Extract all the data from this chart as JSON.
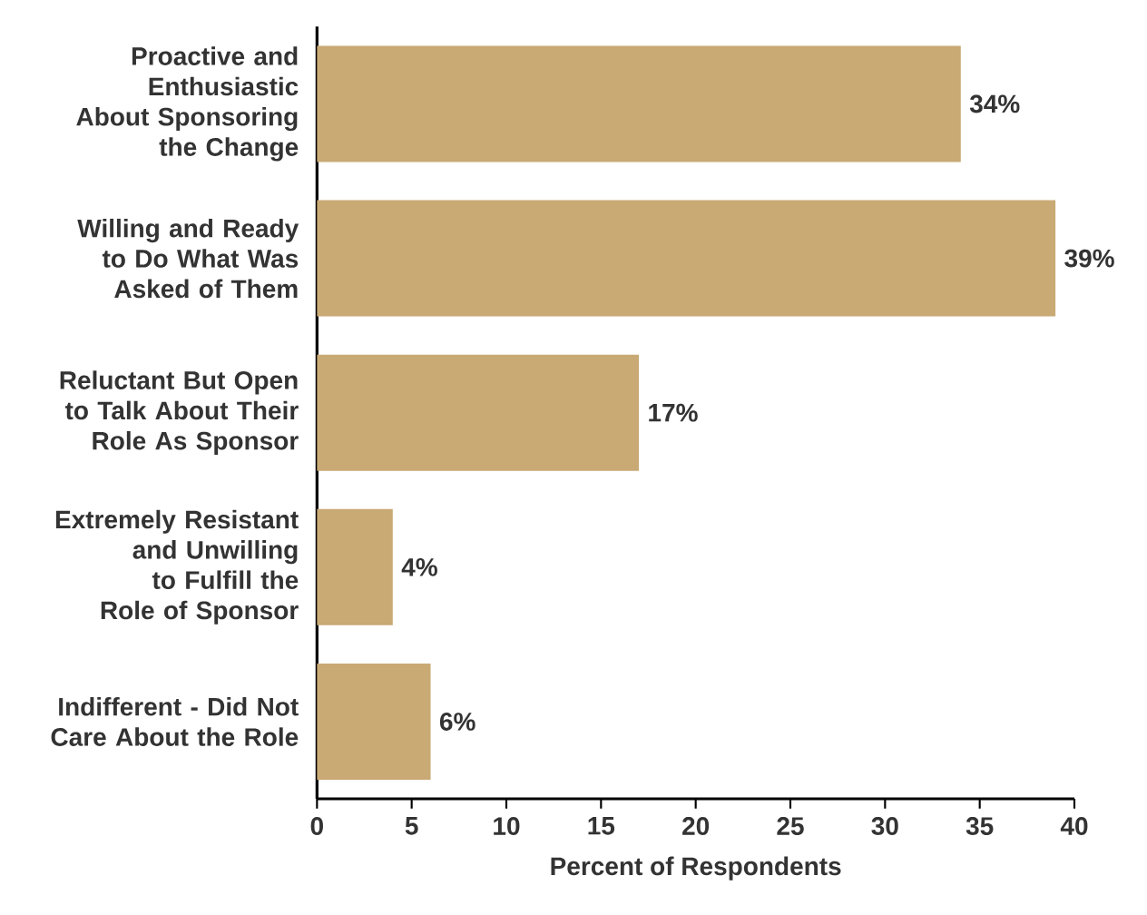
{
  "chart_data": {
    "type": "bar",
    "orientation": "horizontal",
    "xlabel": "Percent of Respondents",
    "categories": [
      "Proactive and Enthusiastic About Sponsoring the Change",
      "Willing and Ready to Do What Was Asked of Them",
      "Reluctant But Open to Talk About Their Role As Sponsor",
      "Extremely Resistant and Unwilling to Fulfill the Role of Sponsor",
      "Indifferent - Did Not Care About the Role"
    ],
    "values": [
      34,
      39,
      17,
      4,
      6
    ],
    "value_labels": [
      "34%",
      "39%",
      "17%",
      "4%",
      "6%"
    ],
    "color": "#c9a974",
    "xlim": [
      0,
      40
    ],
    "xticks": [
      0,
      5,
      10,
      15,
      20,
      25,
      30,
      35,
      40
    ]
  }
}
